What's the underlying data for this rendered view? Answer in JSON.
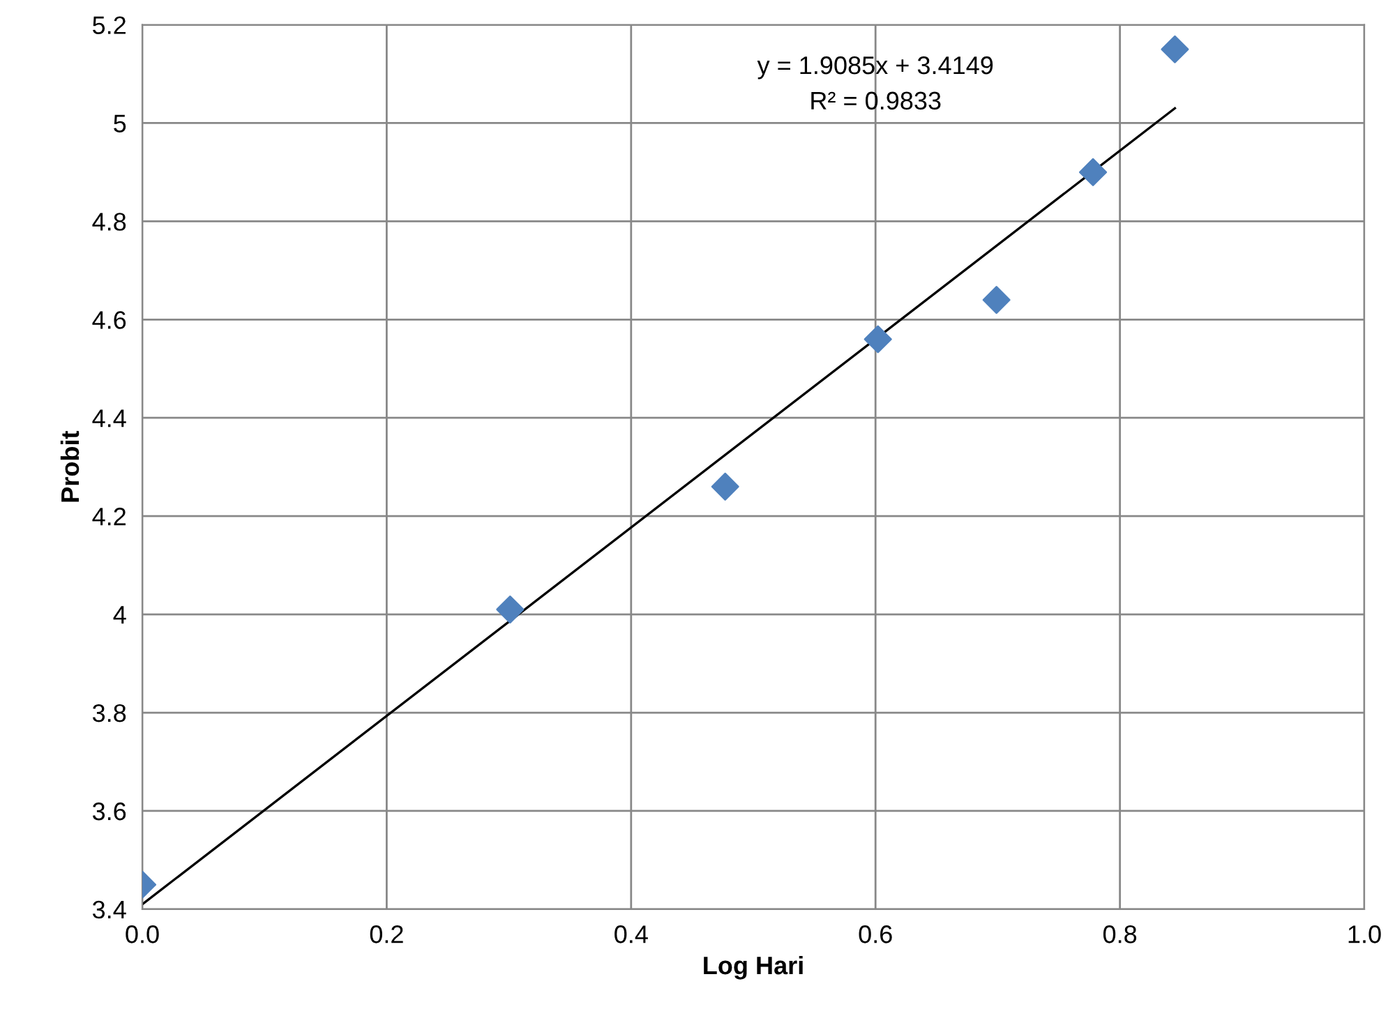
{
  "chart_data": {
    "type": "scatter",
    "xlabel": "Log Hari",
    "ylabel": "Probit",
    "x": [
      0.0,
      0.301,
      0.477,
      0.602,
      0.699,
      0.778,
      0.845
    ],
    "series": [
      {
        "color": "#4f81bd",
        "marker": "diamond",
        "values": [
          3.45,
          4.01,
          4.26,
          4.56,
          4.64,
          4.9,
          5.15
        ]
      },
      {
        "type": "line",
        "color": "#000000",
        "marker": "none",
        "line_style": "solid",
        "x": [
          0.0,
          0.845
        ],
        "values": [
          3.41,
          5.03
        ]
      }
    ],
    "annotations": [
      "y = 1.9085x + 3.4149",
      "R² = 0.9833"
    ],
    "xlim": [
      0,
      1
    ],
    "ylim": [
      3.4,
      5.2
    ],
    "xticks": [
      {
        "value": 0,
        "label": "0.0"
      },
      0.2,
      0.4,
      0.6,
      0.8,
      {
        "value": 1,
        "label": "1.0"
      }
    ],
    "yticks": [
      3.4,
      3.6,
      3.8,
      4,
      4.2,
      4.4,
      4.6,
      4.8,
      5,
      5.2
    ],
    "grid": true
  }
}
